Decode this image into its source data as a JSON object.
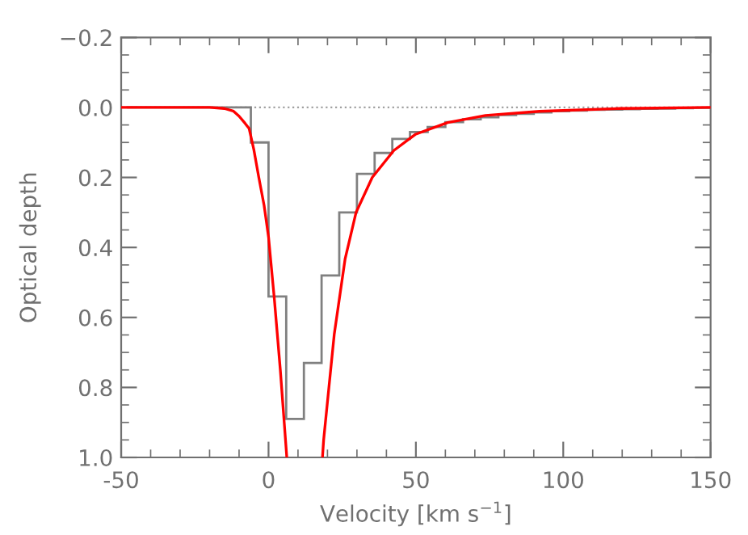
{
  "chart_data": {
    "type": "line",
    "xlabel": "Velocity [km s$^{−1}$]",
    "ylabel": "Optical depth",
    "xlim": [
      -50,
      150
    ],
    "ylim": [
      1.0,
      -0.2
    ],
    "xticks": [
      -50,
      0,
      50,
      100,
      150
    ],
    "yticks": [
      {
        "value": -0.2,
        "label": "−0.2"
      },
      {
        "value": 0.0,
        "label": "0.0"
      },
      {
        "value": 0.2,
        "label": "0.2"
      },
      {
        "value": 0.4,
        "label": "0.4"
      },
      {
        "value": 0.6,
        "label": "0.6"
      },
      {
        "value": 0.8,
        "label": "0.8"
      },
      {
        "value": 1.0,
        "label": "1.0"
      }
    ],
    "grid": false,
    "legend": false,
    "ref_lines": [
      {
        "axis": "y",
        "value": 0,
        "color": "#a0a0a0",
        "line_style": "dotted"
      }
    ],
    "series": [
      {
        "type": "histogram",
        "color": "#808080",
        "bins": [
          -48,
          -42,
          -36,
          -30,
          -24,
          -18,
          -12,
          -6,
          0,
          6,
          12,
          18,
          24,
          30,
          36,
          42,
          48,
          54,
          60,
          66,
          72,
          78,
          84,
          90,
          96,
          102,
          108,
          114,
          120,
          126,
          132,
          138,
          144,
          150
        ],
        "values": [
          0,
          0,
          0,
          0,
          0,
          0,
          0,
          0.1,
          0.54,
          0.89,
          0.73,
          0.48,
          0.3,
          0.19,
          0.13,
          0.09,
          0.07,
          0.056,
          0.042,
          0.034,
          0.028,
          0.022,
          0.018,
          0.014,
          0.011,
          0.009,
          0.007,
          0.006,
          0.005,
          0.004,
          0.003,
          0.002,
          0.001
        ]
      },
      {
        "type": "line",
        "color": "#ff0000",
        "x": [
          -50,
          -20,
          -15,
          -12,
          -10,
          -8,
          -6.6,
          -5,
          -3.3,
          -1.5,
          0,
          2,
          4,
          6.2,
          12,
          18.3,
          18.7,
          22.3,
          26,
          29.7,
          35.2,
          42.5,
          49.8,
          60.8,
          73.6,
          91.9,
          119,
          150
        ],
        "values": [
          0,
          0,
          0.003,
          0.01,
          0.025,
          0.045,
          0.06,
          0.12,
          0.2,
          0.28,
          0.37,
          0.55,
          0.75,
          1.0,
          null,
          1.0,
          0.95,
          0.648,
          0.432,
          0.3,
          0.2,
          0.123,
          0.077,
          0.043,
          0.023,
          0.011,
          0.003,
          0
        ]
      }
    ]
  }
}
